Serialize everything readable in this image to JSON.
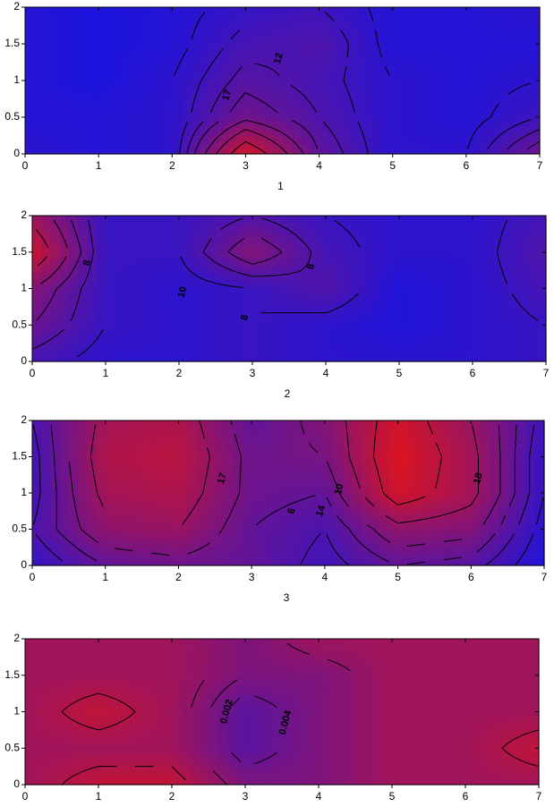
{
  "chart_data": [
    {
      "type": "contour",
      "xlabel": "1",
      "x": [
        0,
        1,
        2,
        3,
        4,
        5,
        6,
        7
      ],
      "y": [
        0,
        0.5,
        1,
        1.5,
        2
      ],
      "z": [
        [
          8,
          7,
          8,
          28,
          14,
          8,
          8,
          16
        ],
        [
          7,
          7,
          8,
          16,
          12,
          8,
          7,
          10
        ],
        [
          7,
          6,
          8,
          13,
          11,
          8,
          7,
          8
        ],
        [
          7,
          6,
          7,
          11,
          12,
          7,
          7,
          7
        ],
        [
          7,
          6,
          7,
          9,
          10,
          7,
          7,
          8
        ]
      ],
      "zlim": [
        5,
        30
      ],
      "levels": [
        8,
        10,
        12,
        14,
        17,
        20,
        24
      ],
      "colors": [
        "#1414e6",
        "#e61414"
      ],
      "xlim": [
        0,
        7
      ],
      "ylim": [
        0,
        2
      ],
      "xticks": [
        0,
        1,
        2,
        3,
        4,
        5,
        6,
        7
      ],
      "yticks": [
        0,
        0.5,
        1,
        1.5,
        2
      ],
      "annotations": [
        "17",
        "12"
      ]
    },
    {
      "type": "contour",
      "xlabel": "2",
      "x": [
        0,
        1,
        2,
        3,
        4,
        5,
        6,
        7
      ],
      "y": [
        0,
        0.5,
        1,
        1.5,
        2
      ],
      "z": [
        [
          9,
          7,
          7,
          8,
          7,
          7,
          7,
          8
        ],
        [
          12,
          8,
          7,
          8,
          7,
          6,
          7,
          8
        ],
        [
          14,
          8,
          7,
          8,
          10,
          6,
          7,
          9
        ],
        [
          20,
          8,
          8,
          14,
          9,
          7,
          7,
          10
        ],
        [
          16,
          8,
          8,
          10,
          8,
          7,
          7,
          9
        ]
      ],
      "zlim": [
        5,
        22
      ],
      "levels": [
        8,
        10,
        12,
        14,
        17
      ],
      "colors": [
        "#1414e6",
        "#e61414"
      ],
      "xlim": [
        0,
        7
      ],
      "ylim": [
        0,
        2
      ],
      "xticks": [
        0,
        1,
        2,
        3,
        4,
        5,
        6,
        7
      ],
      "yticks": [
        0,
        0.5,
        1,
        1.5,
        2
      ],
      "annotations": [
        "8",
        "10",
        "8",
        "8"
      ]
    },
    {
      "type": "contour",
      "xlabel": "3",
      "x": [
        0,
        1,
        2,
        3,
        4,
        5,
        6,
        7
      ],
      "y": [
        0,
        0.5,
        1,
        1.5,
        2
      ],
      "z": [
        [
          8,
          12,
          13,
          12,
          9,
          12,
          11,
          6
        ],
        [
          10,
          16,
          17,
          12,
          10,
          16,
          15,
          7
        ],
        [
          9,
          18,
          19,
          13,
          12,
          22,
          18,
          8
        ],
        [
          9,
          19,
          20,
          13,
          14,
          23,
          18,
          8
        ],
        [
          10,
          18,
          19,
          12,
          15,
          22,
          17,
          9
        ]
      ],
      "zlim": [
        5,
        24
      ],
      "levels": [
        8,
        10,
        12,
        14,
        17,
        20
      ],
      "colors": [
        "#1414e6",
        "#e61414"
      ],
      "xlim": [
        0,
        7
      ],
      "ylim": [
        0,
        2
      ],
      "xticks": [
        0,
        1,
        2,
        3,
        4,
        5,
        6,
        7
      ],
      "yticks": [
        0,
        0.5,
        1,
        1.5,
        2
      ],
      "annotations": [
        "17",
        "6",
        "14",
        "10",
        "18"
      ]
    },
    {
      "type": "contour",
      "x": [
        0,
        1,
        2,
        3,
        4,
        5,
        6,
        7
      ],
      "y": [
        0,
        0.5,
        1,
        1.5,
        2
      ],
      "z": [
        [
          0.004,
          0.005,
          0.005,
          0.003,
          0.003,
          0.004,
          0.004,
          0.004
        ],
        [
          0.004,
          0.004,
          0.004,
          0.002,
          0.003,
          0.004,
          0.004,
          0.005
        ],
        [
          0.004,
          0.005,
          0.004,
          0.002,
          0.003,
          0.004,
          0.004,
          0.004
        ],
        [
          0.004,
          0.004,
          0.004,
          0.003,
          0.003,
          0.004,
          0.004,
          0.004
        ],
        [
          0.004,
          0.004,
          0.004,
          0.003,
          0.004,
          0.004,
          0.004,
          0.004
        ]
      ],
      "zlim": [
        0,
        0.006
      ],
      "levels": [
        0.002,
        0.0025,
        0.003,
        0.0035,
        0.004,
        0.0045,
        0.005
      ],
      "colors": [
        "#1414e6",
        "#e61414"
      ],
      "xlim": [
        0,
        7
      ],
      "ylim": [
        0,
        2
      ],
      "xticks": [
        0,
        1,
        2,
        3,
        4,
        5,
        6,
        7
      ],
      "yticks": [
        0,
        0.5,
        1,
        1.5,
        2
      ],
      "annotations": [
        "0.002",
        "0.004"
      ]
    }
  ]
}
